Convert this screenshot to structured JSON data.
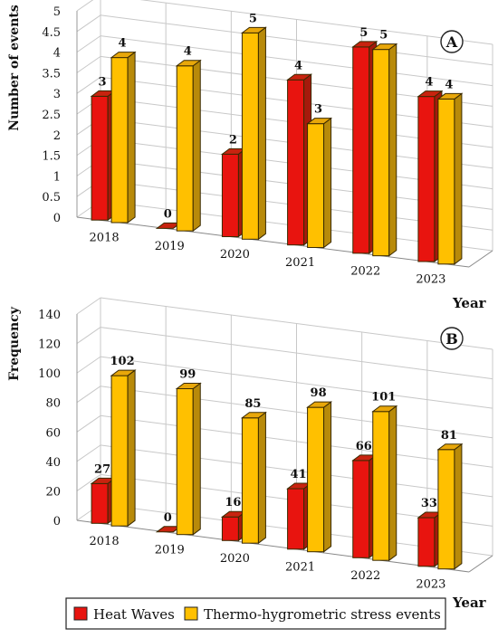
{
  "chart_data": [
    {
      "type": "bar",
      "panel_label": "A",
      "ylabel": "Number of events",
      "xlabel": "Year",
      "ylim": [
        0,
        5
      ],
      "y_ticks": [
        "0",
        "0.5",
        "1",
        "1.5",
        "2",
        "2.5",
        "3",
        "3.5",
        "4",
        "4.5",
        "5"
      ],
      "categories": [
        "2018",
        "2019",
        "2020",
        "2021",
        "2022",
        "2023"
      ],
      "grid": true,
      "series": [
        {
          "name": "Heat Waves",
          "values": [
            3,
            0,
            2,
            4,
            5,
            4
          ]
        },
        {
          "name": "Thermo-hygrometric stress events",
          "values": [
            4,
            4,
            5,
            3,
            5,
            4
          ]
        }
      ]
    },
    {
      "type": "bar",
      "panel_label": "B",
      "ylabel": "Frequency",
      "xlabel": "Year",
      "ylim": [
        0,
        140
      ],
      "y_ticks": [
        "0",
        "20",
        "40",
        "60",
        "80",
        "100",
        "120",
        "140"
      ],
      "categories": [
        "2018",
        "2019",
        "2020",
        "2021",
        "2022",
        "2023"
      ],
      "grid": true,
      "series": [
        {
          "name": "Heat Waves",
          "values": [
            27,
            0,
            16,
            41,
            66,
            33
          ]
        },
        {
          "name": "Thermo-hygrometric stress events",
          "values": [
            102,
            99,
            85,
            98,
            101,
            81
          ]
        }
      ]
    }
  ],
  "legend": {
    "placement": "bottom",
    "items": [
      {
        "label": "Heat Waves",
        "color": "#e8140f"
      },
      {
        "label": "Thermo-hygrometric stress events",
        "color": "#ffc000"
      }
    ]
  },
  "colors": {
    "heat_front": "#e8140f",
    "heat_side": "#a51a0c",
    "heat_top": "#c8230f",
    "thermo_front": "#ffc000",
    "thermo_side": "#b88a0a",
    "thermo_top": "#e8a70a",
    "grid": "#c8c8c8"
  }
}
